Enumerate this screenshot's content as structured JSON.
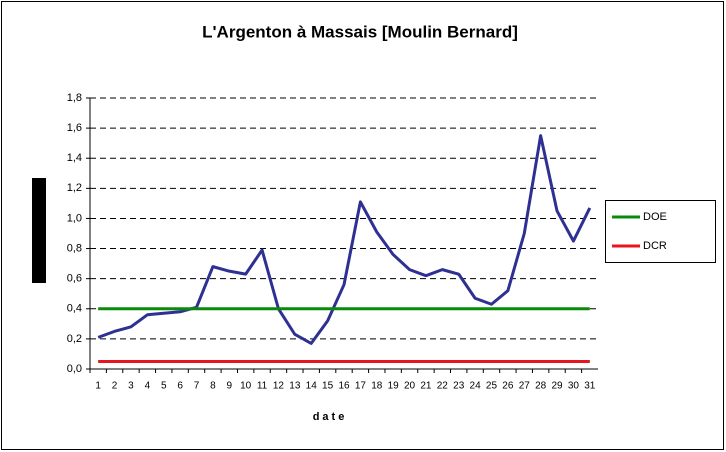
{
  "chart_data": {
    "type": "line",
    "title": "L'Argenton à Massais [Moulin Bernard]",
    "x_label": "date",
    "categories": [
      "1",
      "2",
      "3",
      "4",
      "5",
      "6",
      "7",
      "8",
      "9",
      "10",
      "11",
      "12",
      "13",
      "14",
      "15",
      "16",
      "17",
      "18",
      "19",
      "20",
      "21",
      "22",
      "23",
      "24",
      "25",
      "26",
      "27",
      "28",
      "29",
      "30",
      "31"
    ],
    "series": [
      {
        "color": "#2e3192",
        "values": [
          0.21,
          0.25,
          0.28,
          0.36,
          0.37,
          0.38,
          0.41,
          0.68,
          0.65,
          0.63,
          0.79,
          0.4,
          0.23,
          0.17,
          0.32,
          0.56,
          1.11,
          0.91,
          0.76,
          0.66,
          0.62,
          0.66,
          0.63,
          0.47,
          0.43,
          0.52,
          0.9,
          1.55,
          1.05,
          0.85,
          1.07
        ]
      },
      {
        "name": "DOE",
        "color": "#0a8a0a",
        "values": [
          0.4,
          0.4,
          0.4,
          0.4,
          0.4,
          0.4,
          0.4,
          0.4,
          0.4,
          0.4,
          0.4,
          0.4,
          0.4,
          0.4,
          0.4,
          0.4,
          0.4,
          0.4,
          0.4,
          0.4,
          0.4,
          0.4,
          0.4,
          0.4,
          0.4,
          0.4,
          0.4,
          0.4,
          0.4,
          0.4,
          0.4
        ]
      },
      {
        "name": "DCR",
        "color": "#e8141e",
        "values": [
          0.05,
          0.05,
          0.05,
          0.05,
          0.05,
          0.05,
          0.05,
          0.05,
          0.05,
          0.05,
          0.05,
          0.05,
          0.05,
          0.05,
          0.05,
          0.05,
          0.05,
          0.05,
          0.05,
          0.05,
          0.05,
          0.05,
          0.05,
          0.05,
          0.05,
          0.05,
          0.05,
          0.05,
          0.05,
          0.05,
          0.05
        ]
      }
    ],
    "ylim": [
      0,
      1.8
    ],
    "yticks": [
      {
        "value": 0,
        "label": "0,0"
      },
      {
        "value": 0.2,
        "label": "0,2"
      },
      {
        "value": 0.4,
        "label": "0,4"
      },
      {
        "value": 0.6,
        "label": "0,6"
      },
      {
        "value": 0.8,
        "label": "0,8"
      },
      {
        "value": 1.0,
        "label": "1,0"
      },
      {
        "value": 1.2,
        "label": "1,2"
      },
      {
        "value": 1.4,
        "label": "1,4"
      },
      {
        "value": 1.6,
        "label": "1,6"
      },
      {
        "value": 1.8,
        "label": "1,8"
      }
    ],
    "grid": true
  }
}
